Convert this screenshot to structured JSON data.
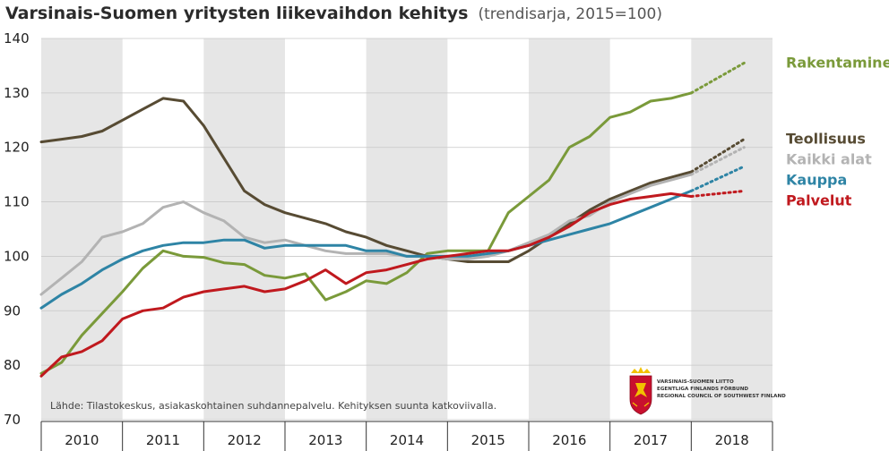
{
  "chart_data": {
    "type": "line",
    "title": "Varsinais-Suomen yritysten liikevaihdon kehitys",
    "subtitle": "(trendisarja, 2015=100)",
    "ylim": [
      70,
      140
    ],
    "yticks": [
      70,
      80,
      90,
      100,
      110,
      120,
      130,
      140
    ],
    "x_categories": [
      "2010",
      "2011",
      "2012",
      "2013",
      "2014",
      "2015",
      "2016",
      "2017",
      "2018"
    ],
    "xlim": [
      2010.0,
      2019.0
    ],
    "grid": "alternating vertical year bands",
    "source": "Lähde: Tilastokeskus, asiakaskohtainen suhdannepalvelu. Kehityksen suunta katkoviivalla.",
    "series": [
      {
        "name": "Rakentaminen",
        "color": "#7a9a3a",
        "x": [
          2010.0,
          2010.25,
          2010.5,
          2010.75,
          2011.0,
          2011.25,
          2011.5,
          2011.75,
          2012.0,
          2012.25,
          2012.5,
          2012.75,
          2013.0,
          2013.25,
          2013.5,
          2013.75,
          2014.0,
          2014.25,
          2014.5,
          2014.75,
          2015.0,
          2015.25,
          2015.5,
          2015.75,
          2016.0,
          2016.25,
          2016.5,
          2016.75,
          2017.0,
          2017.25,
          2017.5,
          2017.75,
          2018.0
        ],
        "y": [
          78.5,
          80.5,
          85.5,
          89.5,
          93.5,
          97.8,
          101.0,
          100.0,
          99.8,
          98.8,
          98.5,
          96.5,
          96.0,
          96.8,
          92.0,
          93.5,
          95.5,
          95.0,
          97.0,
          100.5,
          101.0,
          101.0,
          101.0,
          108.0,
          111.0,
          114.0,
          120.0,
          122.0,
          125.5,
          126.5,
          128.5,
          129.0,
          130.0
        ],
        "trend_x": [
          2018.0,
          2018.65
        ],
        "trend_y": [
          130.0,
          135.5
        ]
      },
      {
        "name": "Teollisuus",
        "color": "#574b33",
        "x": [
          2010.0,
          2010.25,
          2010.5,
          2010.75,
          2011.0,
          2011.25,
          2011.5,
          2011.75,
          2012.0,
          2012.25,
          2012.5,
          2012.75,
          2013.0,
          2013.25,
          2013.5,
          2013.75,
          2014.0,
          2014.25,
          2014.5,
          2014.75,
          2015.0,
          2015.25,
          2015.5,
          2015.75,
          2016.0,
          2016.25,
          2016.5,
          2016.75,
          2017.0,
          2017.25,
          2017.5,
          2017.75,
          2018.0
        ],
        "y": [
          121.0,
          121.5,
          122.0,
          123.0,
          125.0,
          127.0,
          129.0,
          128.5,
          124.0,
          118.0,
          112.0,
          109.5,
          108.0,
          107.0,
          106.0,
          104.5,
          103.5,
          102.0,
          101.0,
          100.0,
          99.5,
          99.0,
          99.0,
          99.0,
          101.0,
          103.5,
          106.0,
          108.5,
          110.5,
          112.0,
          113.5,
          114.5,
          115.5
        ],
        "trend_x": [
          2018.0,
          2018.65
        ],
        "trend_y": [
          115.5,
          121.5
        ]
      },
      {
        "name": "Kaikki alat",
        "color": "#b3b3b3",
        "x": [
          2010.0,
          2010.25,
          2010.5,
          2010.75,
          2011.0,
          2011.25,
          2011.5,
          2011.75,
          2012.0,
          2012.25,
          2012.5,
          2012.75,
          2013.0,
          2013.25,
          2013.5,
          2013.75,
          2014.0,
          2014.25,
          2014.5,
          2014.75,
          2015.0,
          2015.25,
          2015.5,
          2015.75,
          2016.0,
          2016.25,
          2016.5,
          2016.75,
          2017.0,
          2017.25,
          2017.5,
          2017.75,
          2018.0
        ],
        "y": [
          93.0,
          96.0,
          99.0,
          103.5,
          104.5,
          106.0,
          109.0,
          110.0,
          108.0,
          106.5,
          103.5,
          102.5,
          103.0,
          102.0,
          101.0,
          100.5,
          100.5,
          100.5,
          100.0,
          100.0,
          99.5,
          99.5,
          100.0,
          101.0,
          102.5,
          104.0,
          106.5,
          107.5,
          110.0,
          111.5,
          113.0,
          114.0,
          115.0
        ],
        "trend_x": [
          2018.0,
          2018.65
        ],
        "trend_y": [
          115.0,
          120.0
        ]
      },
      {
        "name": "Kauppa",
        "color": "#2e84a5",
        "x": [
          2010.0,
          2010.25,
          2010.5,
          2010.75,
          2011.0,
          2011.25,
          2011.5,
          2011.75,
          2012.0,
          2012.25,
          2012.5,
          2012.75,
          2013.0,
          2013.25,
          2013.5,
          2013.75,
          2014.0,
          2014.25,
          2014.5,
          2014.75,
          2015.0,
          2015.25,
          2015.5,
          2015.75,
          2016.0,
          2016.25,
          2016.5,
          2016.75,
          2017.0,
          2017.25,
          2017.5,
          2017.75,
          2018.0
        ],
        "y": [
          90.5,
          93.0,
          95.0,
          97.5,
          99.5,
          101.0,
          102.0,
          102.5,
          102.5,
          103.0,
          103.0,
          101.5,
          102.0,
          102.0,
          102.0,
          102.0,
          101.0,
          101.0,
          100.0,
          100.0,
          100.0,
          100.0,
          100.5,
          101.0,
          102.0,
          103.0,
          104.0,
          105.0,
          106.0,
          107.5,
          109.0,
          110.5,
          112.0
        ],
        "trend_x": [
          2018.0,
          2018.65
        ],
        "trend_y": [
          112.0,
          116.5
        ]
      },
      {
        "name": "Palvelut",
        "color": "#c0191e",
        "x": [
          2010.0,
          2010.25,
          2010.5,
          2010.75,
          2011.0,
          2011.25,
          2011.5,
          2011.75,
          2012.0,
          2012.25,
          2012.5,
          2012.75,
          2013.0,
          2013.25,
          2013.5,
          2013.75,
          2014.0,
          2014.25,
          2014.5,
          2014.75,
          2015.0,
          2015.25,
          2015.5,
          2015.75,
          2016.0,
          2016.25,
          2016.5,
          2016.75,
          2017.0,
          2017.25,
          2017.5,
          2017.75,
          2018.0
        ],
        "y": [
          78.0,
          81.5,
          82.5,
          84.5,
          88.5,
          90.0,
          90.5,
          92.5,
          93.5,
          94.0,
          94.5,
          93.5,
          94.0,
          95.5,
          97.5,
          95.0,
          97.0,
          97.5,
          98.5,
          99.5,
          100.0,
          100.5,
          101.0,
          101.0,
          102.0,
          103.5,
          105.5,
          108.0,
          109.5,
          110.5,
          111.0,
          111.5,
          111.0
        ],
        "trend_x": [
          2018.0,
          2018.65
        ],
        "trend_y": [
          111.0,
          112.0
        ]
      }
    ]
  },
  "logo": {
    "line1": "VARSINAIS-SUOMEN LIITTO",
    "line2": "EGENTLIGA FINLANDS FÖRBUND",
    "line3": "REGIONAL COUNCIL OF SOUTHWEST FINLAND",
    "crest_colors": [
      "#c8102e",
      "#f2c200"
    ]
  }
}
